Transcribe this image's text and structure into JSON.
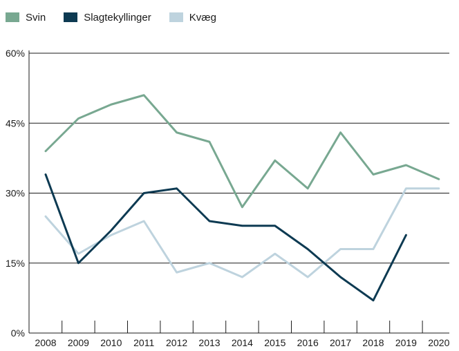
{
  "chart_data": {
    "type": "line",
    "title": "",
    "xlabel": "",
    "ylabel": "",
    "categories": [
      "2008",
      "2009",
      "2010",
      "2011",
      "2012",
      "2013",
      "2014",
      "2015",
      "2016",
      "2017",
      "2018",
      "2019",
      "2020"
    ],
    "y_ticks": [
      "0%",
      "15%",
      "30%",
      "45%",
      "60%"
    ],
    "ylim": [
      0,
      60
    ],
    "y_unit": "%",
    "legend_position": "top-left",
    "grid": "horizontal",
    "series": [
      {
        "name": "Svin",
        "color": "#78a891",
        "values": [
          39,
          46,
          49,
          51,
          43,
          41,
          27,
          37,
          31,
          43,
          34,
          36,
          33
        ]
      },
      {
        "name": "Slagtekyllinger",
        "color": "#0d3a52",
        "values": [
          34,
          15,
          22,
          30,
          31,
          24,
          23,
          23,
          18,
          12,
          7,
          21,
          null
        ]
      },
      {
        "name": "Kvæg",
        "color": "#bed3de",
        "values": [
          25,
          17,
          21,
          24,
          13,
          15,
          12,
          17,
          12,
          18,
          18,
          31,
          31
        ]
      }
    ]
  }
}
